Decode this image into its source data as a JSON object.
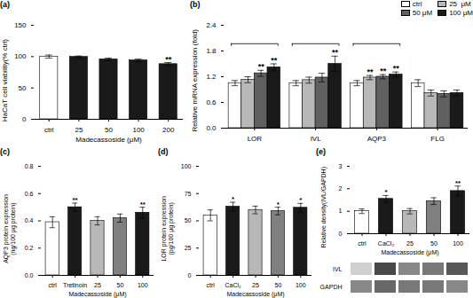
{
  "chart_data": [
    {
      "type": "bar",
      "title": "(a)",
      "categories": [
        "ctrl",
        "25",
        "50",
        "100",
        "200"
      ],
      "values": [
        100.0,
        99.5,
        95.5,
        94.0,
        88.0
      ],
      "errors": [
        2.5,
        1.5,
        2.0,
        2.0,
        2.5
      ],
      "colors": [
        "white",
        "#1a1a1a",
        "#1a1a1a",
        "#1a1a1a",
        "#1a1a1a"
      ],
      "ylabel": "HaCaT cell viability(% ctrl)",
      "xlabel": "Madecassoside (μM)",
      "ylim": [
        0,
        150
      ],
      "yticks": [
        0,
        50,
        100,
        150
      ],
      "annotations": [
        null,
        null,
        null,
        null,
        "**"
      ]
    },
    {
      "type": "bar",
      "title": "(b)",
      "categories": [
        "LOR",
        "IVL",
        "AQP3",
        "FLG"
      ],
      "series": [
        {
          "name": "ctrl",
          "color": "white",
          "values": [
            1.05,
            1.05,
            1.05,
            1.05
          ],
          "errors": [
            0.06,
            0.06,
            0.06,
            0.08
          ],
          "annotations": [
            null,
            null,
            null,
            null
          ]
        },
        {
          "name": "25  μM",
          "color": "#b8b8b8",
          "values": [
            1.13,
            1.12,
            1.18,
            0.82
          ],
          "errors": [
            0.07,
            0.07,
            0.05,
            0.07
          ],
          "annotations": [
            null,
            null,
            "**",
            null
          ]
        },
        {
          "name": "50 μM",
          "color": "#606060",
          "values": [
            1.28,
            1.18,
            1.2,
            0.8
          ],
          "errors": [
            0.07,
            0.1,
            0.05,
            0.07
          ],
          "annotations": [
            "**",
            null,
            "**",
            null
          ]
        },
        {
          "name": "100 μM",
          "color": "#1a1a1a",
          "values": [
            1.42,
            1.5,
            1.25,
            0.82
          ],
          "errors": [
            0.08,
            0.18,
            0.06,
            0.07
          ],
          "annotations": [
            "**",
            "**",
            "**",
            null
          ]
        }
      ],
      "brackets": {
        "categories": [
          "LOR",
          "IVL",
          "AQP3"
        ],
        "y": 1.97
      },
      "ylabel": "Relative mRNA expression (fold)",
      "ylim": [
        0,
        2.4
      ],
      "yticks": [
        {
          "value": 0,
          "label": "0.0"
        },
        0.6,
        1.2,
        1.8,
        2.4
      ],
      "legend": "upper right"
    },
    {
      "type": "bar",
      "title": "(c)",
      "categories": [
        "ctrl",
        "Tretinoin",
        "25",
        "50",
        "100"
      ],
      "values": [
        0.39,
        0.5,
        0.4,
        0.42,
        0.46
      ],
      "errors": [
        0.04,
        0.03,
        0.03,
        0.03,
        0.04
      ],
      "colors": [
        "white",
        "#1a1a1a",
        "#b8b8b8",
        "#808080",
        "#1a1a1a"
      ],
      "ylabel": "AQP3 protein expression\n(ng/100 μg protein)",
      "xlabel": "Madecassoside (μM)",
      "ylim": [
        0,
        0.8
      ],
      "yticks": [
        {
          "value": 0,
          "label": "0.0"
        },
        0.2,
        0.4,
        0.6,
        0.8
      ],
      "annotations": [
        null,
        "**",
        null,
        null,
        "**"
      ]
    },
    {
      "type": "bar",
      "title": "(d)",
      "categories": [
        "ctrl",
        "CaCl₂",
        "25",
        "50",
        "100"
      ],
      "values": [
        55.0,
        63.0,
        60.0,
        59.0,
        62.0
      ],
      "errors": [
        5.0,
        4.0,
        3.5,
        3.5,
        4.0
      ],
      "colors": [
        "white",
        "#1a1a1a",
        "#b8b8b8",
        "#808080",
        "#1a1a1a"
      ],
      "ylabel": "LOR protein expression\n(pg/100 μg protein)",
      "xlabel": "Madecassoside (μM)",
      "ylim": [
        0,
        100
      ],
      "yticks": [
        0,
        25,
        50,
        75,
        100
      ],
      "annotations": [
        null,
        "*",
        null,
        "*",
        "*"
      ]
    },
    {
      "type": "bar",
      "title": "(e)",
      "categories": [
        "ctrl",
        "CaCl₂",
        "25",
        "50",
        "100"
      ],
      "values": [
        1.0,
        1.55,
        1.0,
        1.45,
        1.9
      ],
      "errors": [
        0.1,
        0.15,
        0.12,
        0.15,
        0.22
      ],
      "colors": [
        "white",
        "#1a1a1a",
        "#b8b8b8",
        "#808080",
        "#1a1a1a"
      ],
      "ylabel": "Relative density(IVL/GAPDH)",
      "xlabel": "Madecassoside (μM)",
      "ylim": [
        0,
        3
      ],
      "yticks": [
        0,
        1,
        2,
        3
      ],
      "annotations": [
        null,
        "*",
        null,
        null,
        "**"
      ]
    },
    {
      "type": "blot",
      "tick_labels": "y",
      "series": [
        {
          "name": "IVL",
          "colors": [
            "#d0d0d0",
            "#484848",
            "#888888",
            "#787878",
            "#585858"
          ]
        },
        {
          "name": "GAPDH",
          "colors": [
            "#888888",
            "#686868",
            "#787878",
            "#787878",
            "#888888"
          ]
        }
      ]
    }
  ]
}
